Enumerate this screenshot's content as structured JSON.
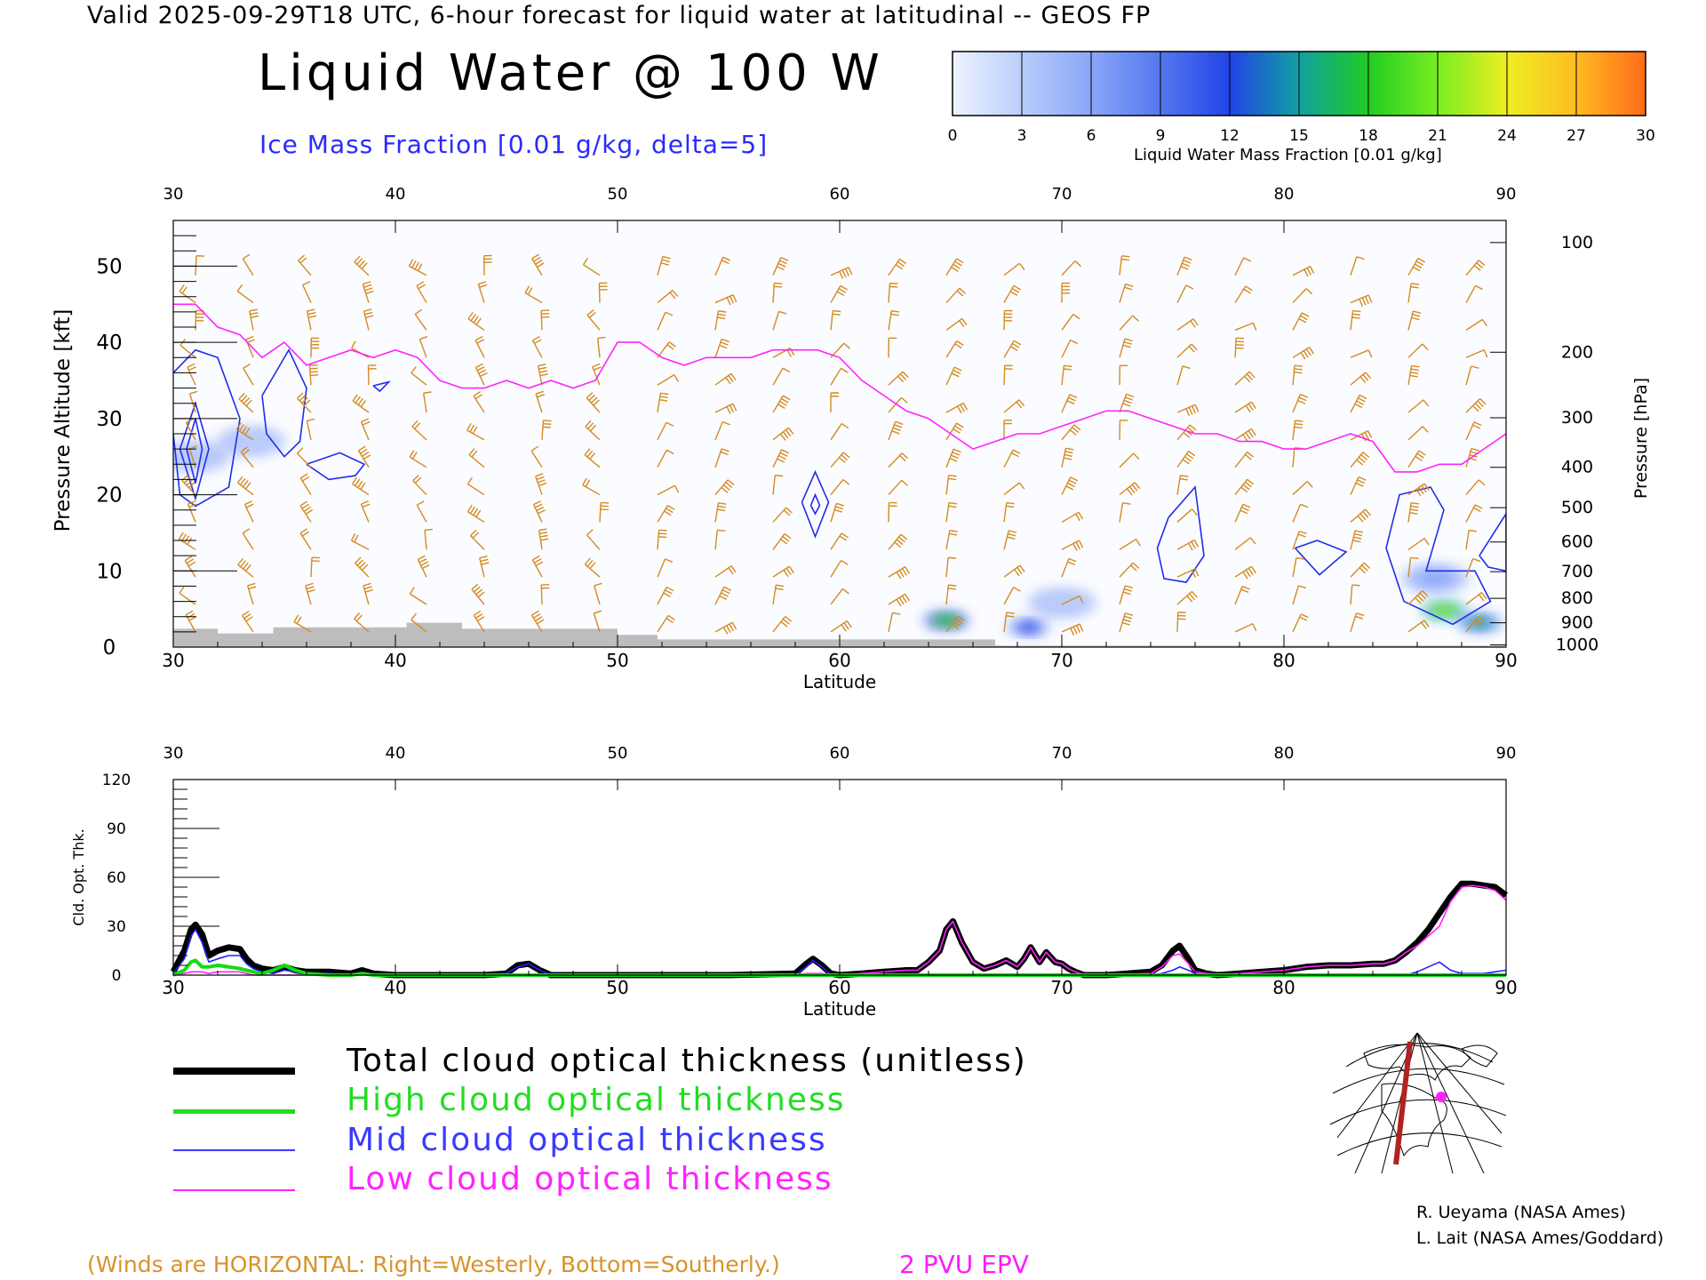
{
  "header": {
    "title": "Valid 2025-09-29T18 UTC, 6-hour forecast for liquid water at latitudinal -- GEOS FP",
    "main_title": "Liquid Water @ 100 W",
    "subtitle": "Ice Mass Fraction [0.01 g/kg, delta=5]"
  },
  "colorbar": {
    "label": "Liquid Water Mass Fraction [0.01 g/kg]",
    "ticks": [
      "0",
      "3",
      "6",
      "9",
      "12",
      "15",
      "18",
      "21",
      "24",
      "27",
      "30"
    ],
    "colors": [
      "#eef3ff",
      "#b9cdfb",
      "#8aa6f7",
      "#5577f0",
      "#2244e6",
      "#10a0a0",
      "#22cc22",
      "#77ee22",
      "#eeee22",
      "#ffbb22",
      "#ff6a1a"
    ]
  },
  "chart_data": [
    {
      "type": "heatmap",
      "title": "Liquid Water @ 100 W",
      "xlabel": "Latitude",
      "ylabel": "Pressure Altitude [kft]",
      "y2label": "Pressure [hPa]",
      "xlim": [
        30,
        90
      ],
      "ylim": [
        0,
        56
      ],
      "x_ticks": [
        "30",
        "40",
        "50",
        "60",
        "70",
        "80",
        "90"
      ],
      "y_ticks": [
        "0",
        "10",
        "20",
        "30",
        "40",
        "50"
      ],
      "pressure_ticks": [
        "100",
        "200",
        "300",
        "400",
        "500",
        "600",
        "700",
        "800",
        "900",
        "1000"
      ],
      "pressure_tick_kft": [
        53.1,
        38.7,
        30.1,
        23.6,
        18.3,
        13.8,
        9.9,
        6.4,
        3.2,
        0.3
      ],
      "epv_2pvu_line": {
        "lat": [
          30,
          31,
          32,
          33,
          34,
          35,
          36,
          37,
          38,
          39,
          40,
          41,
          42,
          43,
          44,
          45,
          46,
          47,
          48,
          49,
          50,
          51,
          52,
          53,
          54,
          55,
          56,
          57,
          58,
          59,
          60,
          61,
          62,
          63,
          64,
          65,
          66,
          67,
          68,
          69,
          70,
          71,
          72,
          73,
          74,
          75,
          76,
          77,
          78,
          79,
          80,
          81,
          82,
          83,
          84,
          85,
          86,
          87,
          88,
          89,
          90
        ],
        "kft": [
          45,
          45,
          42,
          41,
          38,
          40,
          37,
          38,
          39,
          38,
          39,
          38,
          35,
          34,
          34,
          35,
          34,
          35,
          34,
          35,
          40,
          40,
          38,
          37,
          38,
          38,
          38,
          39,
          39,
          39,
          38,
          35,
          33,
          31,
          30,
          28,
          26,
          27,
          28,
          28,
          29,
          30,
          31,
          31,
          30,
          29,
          28,
          28,
          27,
          27,
          26,
          26,
          27,
          28,
          27,
          23,
          23,
          24,
          24,
          26,
          28
        ]
      },
      "liquid_water_blobs": [
        {
          "lat": 64.8,
          "kft": 3.5,
          "value": 18
        },
        {
          "lat": 68.5,
          "kft": 2.6,
          "value": 12
        },
        {
          "lat": 70,
          "kft": 5.8,
          "value": 4
        },
        {
          "lat": 87.2,
          "kft": 4.8,
          "value": 20
        },
        {
          "lat": 88.8,
          "kft": 3.2,
          "value": 16
        },
        {
          "lat": 86.8,
          "kft": 9,
          "value": 6
        },
        {
          "lat": 31,
          "kft": 25,
          "value": 3
        },
        {
          "lat": 33.5,
          "kft": 27,
          "value": 2
        }
      ],
      "ice_contours": [
        {
          "lat": [
            30,
            31,
            32,
            33,
            32.5,
            31,
            30.3,
            30
          ],
          "kft": [
            36,
            39,
            38,
            30,
            21,
            18.5,
            20,
            28
          ]
        },
        {
          "lat": [
            30.3,
            31,
            31.6,
            31,
            30.3
          ],
          "kft": [
            26,
            32,
            26,
            19.5,
            26
          ]
        },
        {
          "lat": [
            30.6,
            31,
            31.3,
            31,
            30.6
          ],
          "kft": [
            26,
            30,
            26,
            21.5,
            26
          ]
        },
        {
          "lat": [
            34,
            35.2,
            36,
            35.7,
            35,
            34.2,
            34
          ],
          "kft": [
            33,
            39,
            34,
            27,
            25,
            28,
            33
          ]
        },
        {
          "lat": [
            36,
            37.5,
            38.6,
            38.2,
            37,
            36
          ],
          "kft": [
            24,
            25.5,
            24,
            22.5,
            22,
            24
          ]
        },
        {
          "lat": [
            39,
            39.7,
            39.3,
            39
          ],
          "kft": [
            34.3,
            34.8,
            33.6,
            34.3
          ]
        },
        {
          "lat": [
            58.3,
            58.9,
            59.5,
            58.9,
            58.3
          ],
          "kft": [
            19,
            23,
            19,
            14.5,
            19
          ]
        },
        {
          "lat": [
            58.7,
            58.9,
            59.1,
            58.9,
            58.7
          ],
          "kft": [
            18.6,
            20,
            18.6,
            17.5,
            18.6
          ]
        },
        {
          "lat": [
            74.8,
            76,
            76.4,
            75.6,
            74.6,
            74.3,
            74.8
          ],
          "kft": [
            17,
            21,
            12,
            8.5,
            9,
            13,
            17
          ]
        },
        {
          "lat": [
            80.5,
            81.5,
            82.8,
            81.6,
            80.5
          ],
          "kft": [
            13,
            14,
            12.5,
            9.5,
            13
          ]
        },
        {
          "lat": [
            84.6,
            85.2,
            86.6,
            87.2,
            86.4,
            88.6,
            89.3,
            87.6,
            85.4,
            84.6
          ],
          "kft": [
            13,
            20,
            21,
            18,
            10,
            10,
            6,
            3,
            6,
            13
          ]
        },
        {
          "lat": [
            88.8,
            90,
            90,
            89.2,
            88.8
          ],
          "kft": [
            12,
            17.5,
            10,
            10.5,
            12
          ]
        }
      ]
    },
    {
      "type": "line",
      "xlabel": "Latitude",
      "ylabel": "Cld. Opt. Thk.",
      "xlim": [
        30,
        90
      ],
      "ylim": [
        0,
        120
      ],
      "x_ticks": [
        "30",
        "40",
        "50",
        "60",
        "70",
        "80",
        "90"
      ],
      "y_ticks": [
        "0",
        "30",
        "60",
        "90",
        "120"
      ],
      "x": [
        30,
        30.5,
        30.8,
        31,
        31.3,
        31.6,
        32,
        32.5,
        33,
        33.3,
        33.6,
        34,
        34.5,
        35,
        35.5,
        36,
        37,
        38,
        38.5,
        39,
        40,
        44,
        45,
        45.5,
        46,
        46.5,
        47,
        50,
        55,
        58,
        58.5,
        58.8,
        59.2,
        59.6,
        60,
        61,
        62,
        63,
        63.5,
        64,
        64.5,
        64.8,
        65.1,
        65.5,
        66,
        66.5,
        67,
        67.5,
        68,
        68.3,
        68.6,
        69,
        69.3,
        69.7,
        70,
        70.3,
        70.6,
        71,
        72,
        74,
        74.5,
        75,
        75.3,
        75.7,
        76,
        76.5,
        77,
        78,
        80,
        81,
        82,
        83,
        84,
        84.5,
        85,
        85.5,
        86,
        86.5,
        87,
        87.5,
        88,
        88.5,
        89,
        89.5,
        90
      ],
      "series": [
        {
          "name": "Total cloud optical thickness (unitless)",
          "values": [
            2,
            15,
            28,
            31,
            25,
            12,
            15,
            17,
            16,
            10,
            6,
            4,
            3,
            5,
            3,
            2,
            2,
            1,
            3,
            1,
            0,
            0,
            1,
            6,
            7,
            3,
            0,
            0,
            0,
            1,
            7,
            10,
            6,
            1,
            0,
            1,
            2,
            3,
            3,
            8,
            15,
            28,
            33,
            20,
            8,
            4,
            6,
            9,
            5,
            10,
            17,
            8,
            14,
            8,
            7,
            4,
            2,
            0,
            0,
            2,
            6,
            15,
            18,
            10,
            3,
            1,
            0,
            1,
            3,
            5,
            6,
            6,
            7,
            7,
            9,
            14,
            20,
            28,
            38,
            48,
            56,
            56,
            55,
            54,
            49
          ]
        },
        {
          "name": "High cloud optical thickness",
          "values": [
            0,
            3,
            8,
            9,
            5,
            5,
            6,
            5,
            4,
            3,
            2,
            1,
            3,
            6,
            3,
            1,
            0,
            0,
            1,
            0,
            0,
            0,
            0,
            0,
            0,
            0,
            0,
            0,
            0,
            0,
            0,
            0,
            0,
            0,
            0,
            0,
            0,
            0,
            0,
            0,
            0,
            0,
            0,
            0,
            0,
            0,
            0,
            0,
            0,
            0,
            0,
            0,
            0,
            0,
            0,
            0,
            0,
            0,
            0,
            0,
            0,
            0,
            0,
            0,
            0,
            0,
            0,
            0,
            0,
            0,
            0,
            0,
            0,
            0,
            0,
            0,
            0,
            0,
            0,
            0,
            0,
            0,
            0,
            0,
            0
          ]
        },
        {
          "name": "Mid cloud optical thickness",
          "values": [
            1,
            10,
            24,
            28,
            20,
            8,
            10,
            12,
            12,
            7,
            4,
            2,
            1,
            3,
            2,
            1,
            1,
            0,
            1,
            0,
            0,
            0,
            1,
            5,
            7,
            3,
            0,
            0,
            0,
            0,
            5,
            9,
            5,
            0,
            0,
            0,
            0,
            0,
            0,
            0,
            0,
            0,
            0,
            0,
            0,
            0,
            0,
            0,
            0,
            0,
            0,
            0,
            0,
            0,
            0,
            0,
            0,
            0,
            0,
            0,
            1,
            3,
            5,
            3,
            1,
            0,
            0,
            0,
            0,
            0,
            0,
            0,
            0,
            0,
            0,
            0,
            2,
            5,
            8,
            3,
            1,
            1,
            1,
            2,
            3
          ]
        },
        {
          "name": "Low cloud optical thickness",
          "values": [
            0,
            1,
            2,
            2,
            2,
            1,
            2,
            2,
            2,
            1,
            0,
            0,
            0,
            0,
            0,
            0,
            0,
            0,
            0,
            0,
            0,
            0,
            0,
            0,
            0,
            0,
            0,
            0,
            0,
            0,
            1,
            1,
            1,
            0,
            0,
            1,
            2,
            3,
            3,
            8,
            15,
            28,
            33,
            20,
            8,
            4,
            6,
            9,
            5,
            10,
            17,
            8,
            14,
            8,
            7,
            4,
            2,
            0,
            0,
            1,
            5,
            12,
            13,
            7,
            2,
            1,
            0,
            1,
            3,
            5,
            6,
            6,
            7,
            7,
            9,
            14,
            18,
            24,
            30,
            45,
            54,
            55,
            54,
            52,
            46
          ]
        }
      ],
      "colors": [
        "#000000",
        "#11dd11",
        "#2222ff",
        "#ff22ff"
      ]
    }
  ],
  "legend": [
    {
      "label": "Total cloud optical thickness (unitless)",
      "color": "#000000"
    },
    {
      "label": "High cloud optical thickness",
      "color": "#22dd22"
    },
    {
      "label": "Mid cloud optical thickness",
      "color": "#3a3aff"
    },
    {
      "label": "Low cloud optical thickness",
      "color": "#ff22ff"
    }
  ],
  "credits": {
    "line1": "R. Ueyama (NASA Ames)",
    "line2": "L. Lait (NASA Ames/Goddard)"
  },
  "notes": {
    "winds": "(Winds are HORIZONTAL: Right=Westerly, Bottom=Southerly.)",
    "epv": "2 PVU EPV"
  }
}
